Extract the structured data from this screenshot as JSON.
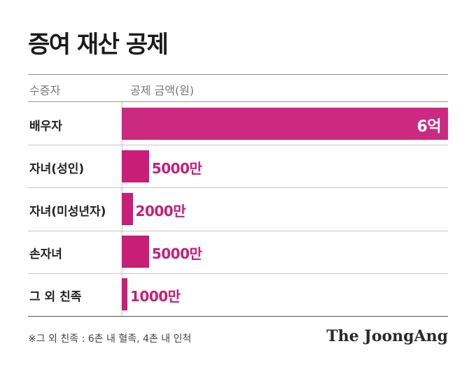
{
  "title": "증여 재산 공제",
  "columns": {
    "recipient": "수증자",
    "amount": "공제 금액(원)"
  },
  "chart_data": {
    "type": "bar",
    "orientation": "horizontal",
    "title": "증여 재산 공제",
    "xlabel": "공제 금액(원)",
    "ylabel": "수증자",
    "categories": [
      "배우자",
      "자녀(성인)",
      "자녀(미성년자)",
      "손자녀",
      "그 외 친족"
    ],
    "values": [
      600000000,
      50000000,
      20000000,
      50000000,
      10000000
    ],
    "value_labels": [
      "6억",
      "5000만",
      "2000만",
      "5000만",
      "1000만"
    ],
    "xlim": [
      0,
      600000000
    ],
    "grid": false,
    "bar_color": "#c81e78"
  },
  "footnote": "※그 외 친족 : 6촌 내 혈족, 4촌 내 인척",
  "source": "The JoongAng"
}
